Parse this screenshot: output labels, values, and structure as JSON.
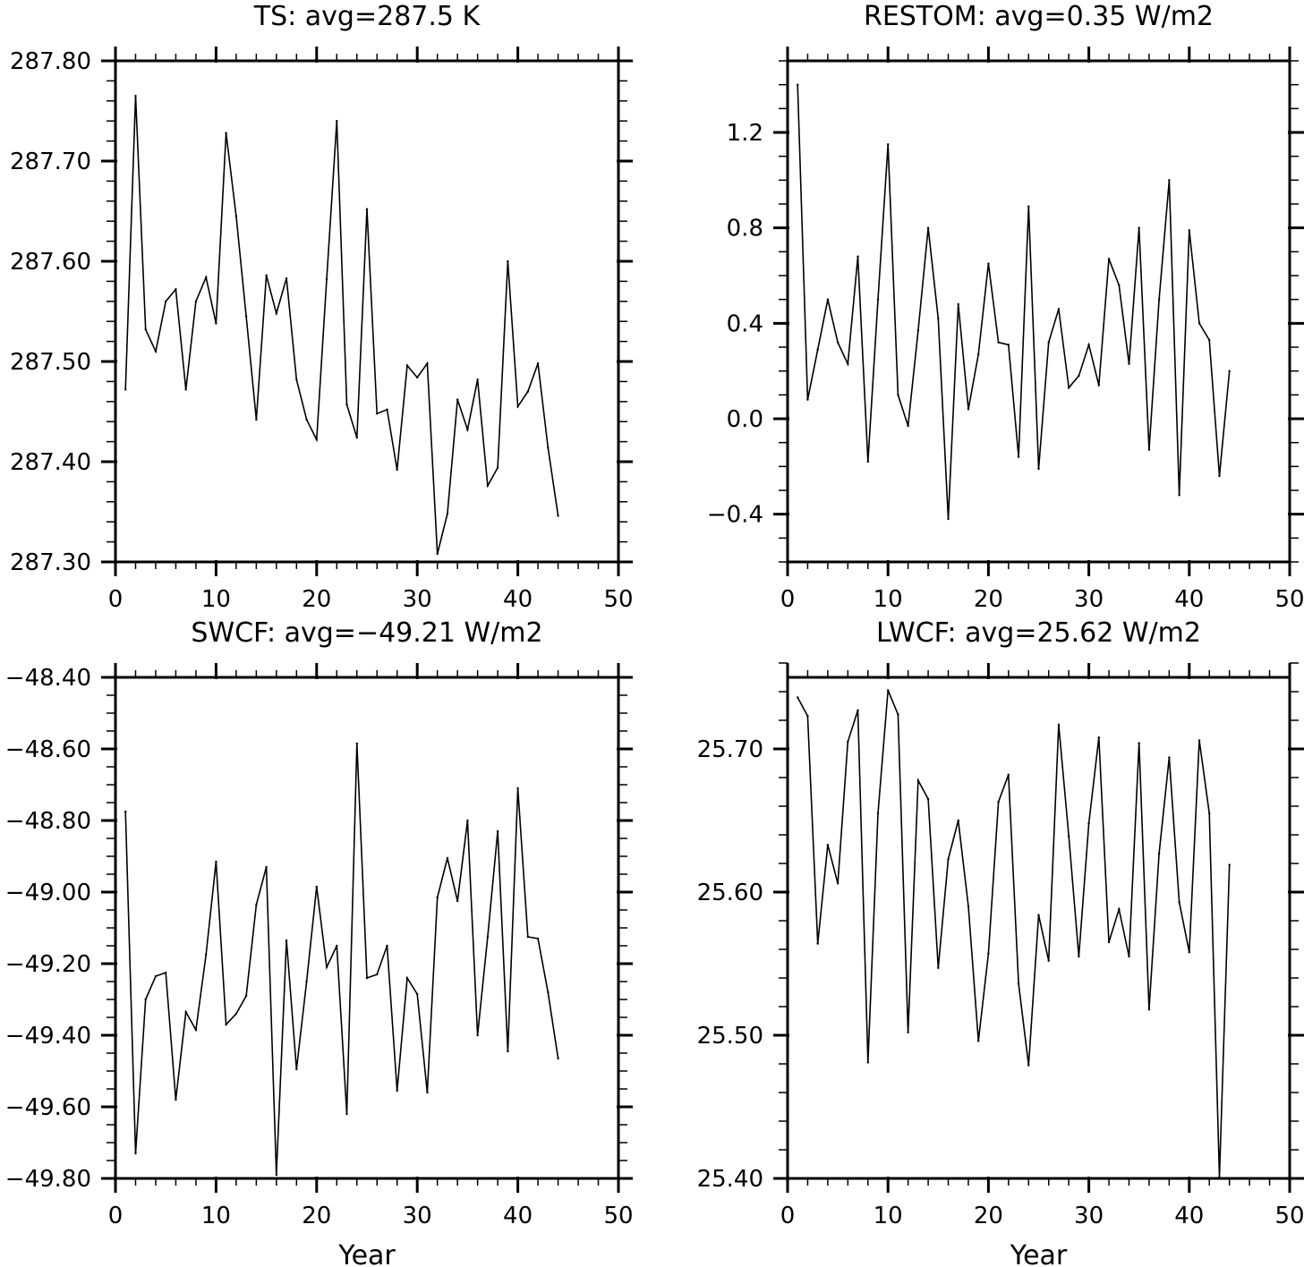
{
  "chart_data": [
    {
      "type": "line",
      "title": "TS: avg=287.5 K",
      "xlabel": "",
      "ylabel": "",
      "xlim": [
        0,
        50
      ],
      "ylim": [
        287.3,
        287.8
      ],
      "xticks": [
        0,
        10,
        20,
        30,
        40,
        50
      ],
      "xtick_labels": [
        "0",
        "10",
        "20",
        "30",
        "40",
        "50"
      ],
      "yticks": [
        287.3,
        287.4,
        287.5,
        287.6,
        287.7,
        287.8
      ],
      "ytick_labels": [
        "287.30",
        "287.40",
        "287.50",
        "287.60",
        "287.70",
        "287.80"
      ],
      "yminor": 0.02,
      "x": [
        1,
        2,
        3,
        4,
        5,
        6,
        7,
        8,
        9,
        10,
        11,
        12,
        13,
        14,
        15,
        16,
        17,
        18,
        19,
        20,
        21,
        22,
        23,
        24,
        25,
        26,
        27,
        28,
        29,
        30,
        31,
        32,
        33,
        34,
        35,
        36,
        37,
        38,
        39,
        40,
        41,
        42,
        43,
        44
      ],
      "series": [
        {
          "values": [
            287.472,
            287.765,
            287.532,
            287.51,
            287.56,
            287.572,
            287.472,
            287.56,
            287.584,
            287.538,
            287.728,
            287.645,
            287.545,
            287.442,
            287.586,
            287.548,
            287.583,
            287.482,
            287.442,
            287.422,
            287.582,
            287.74,
            287.457,
            287.424,
            287.652,
            287.448,
            287.452,
            287.392,
            287.496,
            287.484,
            287.498,
            287.308,
            287.348,
            287.462,
            287.432,
            287.482,
            287.376,
            287.394,
            287.6,
            287.455,
            287.47,
            287.498,
            287.414,
            287.346
          ]
        }
      ],
      "grid": false,
      "legend": "none"
    },
    {
      "type": "line",
      "title": "RESTOM: avg=0.35 W/m2",
      "xlabel": "",
      "ylabel": "",
      "xlim": [
        0,
        50
      ],
      "ylim": [
        -0.6,
        1.5
      ],
      "xticks": [
        0,
        10,
        20,
        30,
        40,
        50
      ],
      "xtick_labels": [
        "0",
        "10",
        "20",
        "30",
        "40",
        "50"
      ],
      "yticks": [
        -0.4,
        0.0,
        0.4,
        0.8,
        1.2
      ],
      "ytick_labels": [
        "−0.4",
        "0.0",
        "0.4",
        "0.8",
        "1.2"
      ],
      "yminor": 0.1,
      "x": [
        1,
        2,
        3,
        4,
        5,
        6,
        7,
        8,
        9,
        10,
        11,
        12,
        13,
        14,
        15,
        16,
        17,
        18,
        19,
        20,
        21,
        22,
        23,
        24,
        25,
        26,
        27,
        28,
        29,
        30,
        31,
        32,
        33,
        34,
        35,
        36,
        37,
        38,
        39,
        40,
        41,
        42,
        43,
        44
      ],
      "series": [
        {
          "values": [
            1.4,
            0.08,
            0.29,
            0.5,
            0.32,
            0.23,
            0.68,
            -0.18,
            0.5,
            1.15,
            0.1,
            -0.03,
            0.37,
            0.8,
            0.42,
            -0.42,
            0.48,
            0.04,
            0.27,
            0.65,
            0.32,
            0.31,
            -0.16,
            0.89,
            -0.21,
            0.32,
            0.46,
            0.13,
            0.18,
            0.31,
            0.14,
            0.67,
            0.56,
            0.23,
            0.8,
            -0.13,
            0.5,
            1.0,
            -0.32,
            0.79,
            0.4,
            0.33,
            -0.24,
            0.2
          ]
        }
      ],
      "grid": false,
      "legend": "none"
    },
    {
      "type": "line",
      "title": "SWCF: avg=−49.21 W/m2",
      "xlabel": "Year",
      "ylabel": "",
      "xlim": [
        0,
        50
      ],
      "ylim": [
        -49.8,
        -48.4
      ],
      "xticks": [
        0,
        10,
        20,
        30,
        40,
        50
      ],
      "xtick_labels": [
        "0",
        "10",
        "20",
        "30",
        "40",
        "50"
      ],
      "yticks": [
        -49.8,
        -49.6,
        -49.4,
        -49.2,
        -49.0,
        -48.8,
        -48.6,
        -48.4
      ],
      "ytick_labels": [
        "−49.80",
        "−49.60",
        "−49.40",
        "−49.20",
        "−49.00",
        "−48.80",
        "−48.60",
        "−48.40"
      ],
      "yminor": 0.05,
      "x": [
        1,
        2,
        3,
        4,
        5,
        6,
        7,
        8,
        9,
        10,
        11,
        12,
        13,
        14,
        15,
        16,
        17,
        18,
        19,
        20,
        21,
        22,
        23,
        24,
        25,
        26,
        27,
        28,
        29,
        30,
        31,
        32,
        33,
        34,
        35,
        36,
        37,
        38,
        39,
        40,
        41,
        42,
        43,
        44
      ],
      "series": [
        {
          "values": [
            -48.775,
            -49.73,
            -49.3,
            -49.235,
            -49.225,
            -49.58,
            -49.335,
            -49.385,
            -49.175,
            -48.915,
            -49.37,
            -49.34,
            -49.29,
            -49.035,
            -48.93,
            -49.79,
            -49.135,
            -49.495,
            -49.25,
            -48.985,
            -49.21,
            -49.15,
            -49.62,
            -48.585,
            -49.24,
            -49.23,
            -49.15,
            -49.555,
            -49.24,
            -49.285,
            -49.56,
            -49.015,
            -48.905,
            -49.025,
            -48.8,
            -49.4,
            -49.125,
            -48.83,
            -49.445,
            -48.71,
            -49.125,
            -49.13,
            -49.28,
            -49.465
          ]
        }
      ],
      "grid": false,
      "legend": "none"
    },
    {
      "type": "line",
      "title": "LWCF: avg=25.62 W/m2",
      "xlabel": "Year",
      "ylabel": "",
      "xlim": [
        0,
        50
      ],
      "ylim": [
        25.4,
        25.75
      ],
      "xticks": [
        0,
        10,
        20,
        30,
        40,
        50
      ],
      "xtick_labels": [
        "0",
        "10",
        "20",
        "30",
        "40",
        "50"
      ],
      "yticks": [
        25.4,
        25.5,
        25.6,
        25.7
      ],
      "ytick_labels": [
        "25.40",
        "25.50",
        "25.60",
        "25.70"
      ],
      "yminor": 0.02,
      "x": [
        1,
        2,
        3,
        4,
        5,
        6,
        7,
        8,
        9,
        10,
        11,
        12,
        13,
        14,
        15,
        16,
        17,
        18,
        19,
        20,
        21,
        22,
        23,
        24,
        25,
        26,
        27,
        28,
        29,
        30,
        31,
        32,
        33,
        34,
        35,
        36,
        37,
        38,
        39,
        40,
        41,
        42,
        43,
        44
      ],
      "series": [
        {
          "values": [
            25.736,
            25.723,
            25.564,
            25.633,
            25.606,
            25.705,
            25.727,
            25.481,
            25.655,
            25.741,
            25.724,
            25.502,
            25.678,
            25.665,
            25.547,
            25.623,
            25.65,
            25.59,
            25.496,
            25.557,
            25.663,
            25.682,
            25.536,
            25.479,
            25.584,
            25.552,
            25.717,
            25.639,
            25.555,
            25.648,
            25.708,
            25.565,
            25.588,
            25.555,
            25.704,
            25.518,
            25.627,
            25.694,
            25.593,
            25.558,
            25.706,
            25.655,
            25.401,
            25.619
          ]
        }
      ],
      "grid": false,
      "legend": "none"
    }
  ]
}
